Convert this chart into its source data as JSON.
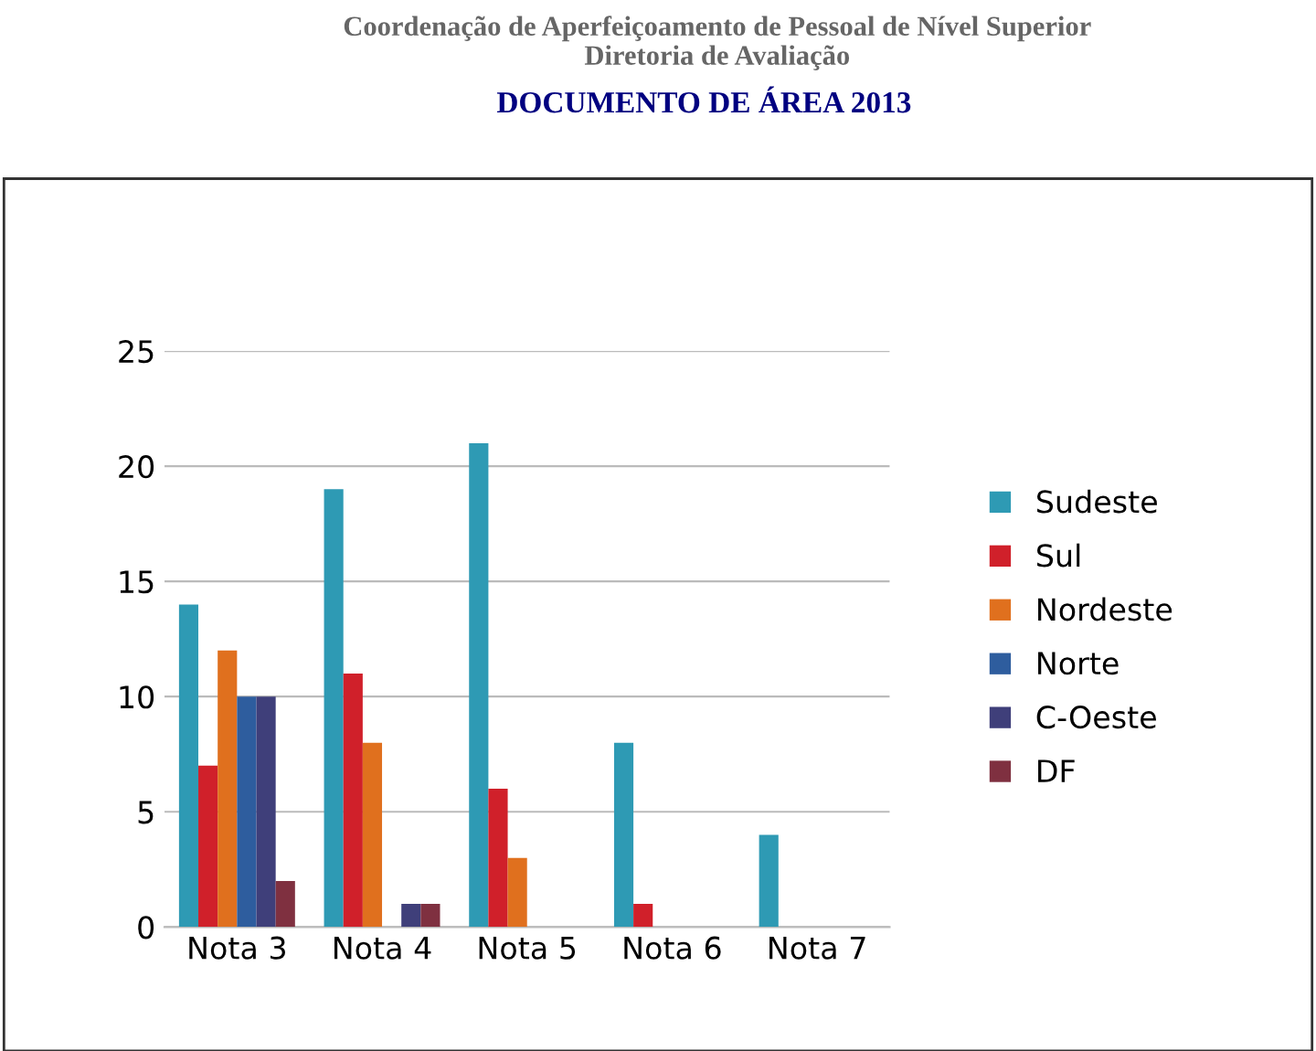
{
  "chart_data": {
    "type": "bar",
    "title": "DOCUMENTO DE ÁREA 2013",
    "annotations": [
      "Coordenação de Aperfeiçoamento de Pessoal de Nível Superior",
      "Diretoria de Avaliação"
    ],
    "categories": [
      "Nota 3",
      "Nota 4",
      "Nota 5",
      "Nota 6",
      "Nota 7"
    ],
    "series": [
      {
        "name": "Sudeste",
        "color": "#2e9ab4",
        "values": [
          14,
          19,
          21,
          8,
          4
        ]
      },
      {
        "name": "Sul",
        "color": "#d0202a",
        "values": [
          7,
          11,
          6,
          1,
          0
        ]
      },
      {
        "name": "Nordeste",
        "color": "#e0701e",
        "values": [
          12,
          8,
          3,
          0,
          0
        ]
      },
      {
        "name": "Norte",
        "color": "#2e5d9e",
        "values": [
          10,
          0,
          0,
          0,
          0
        ]
      },
      {
        "name": "C-Oeste",
        "color": "#3f3f7a",
        "values": [
          10,
          1,
          0,
          0,
          0
        ]
      },
      {
        "name": "DF",
        "color": "#7f3040",
        "values": [
          2,
          1,
          0,
          0,
          0
        ]
      }
    ],
    "ylim": [
      0,
      25
    ],
    "yticks": [
      0,
      5,
      10,
      15,
      20,
      25
    ],
    "grid": "y",
    "legend": "right"
  }
}
